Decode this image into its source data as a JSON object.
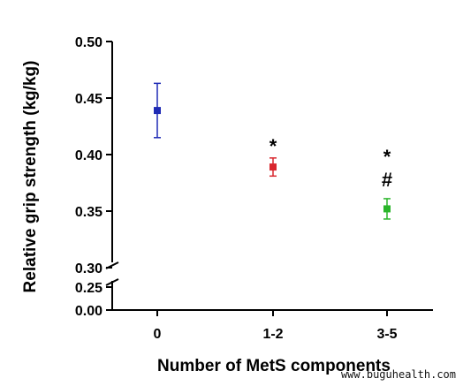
{
  "chart_data": {
    "type": "scatter",
    "categories": [
      "0",
      "1-2",
      "3-5"
    ],
    "series": [
      {
        "values": [
          0.439,
          0.389,
          0.352
        ],
        "error": [
          0.024,
          0.008,
          0.009
        ],
        "colors": [
          "#1f2bb5",
          "#d9262e",
          "#2ab52a"
        ]
      }
    ],
    "annotations": [
      {
        "category": "1-2",
        "text": "*"
      },
      {
        "category": "3-5",
        "text": "*"
      },
      {
        "category": "3-5",
        "text": "#"
      }
    ],
    "xlabel": "Number of MetS components",
    "ylabel": "Relative grip strength (kg/kg)",
    "ylim": [
      0.3,
      0.5
    ],
    "yticks": [
      "0.50",
      "0.45",
      "0.40",
      "0.35",
      "0.30"
    ],
    "ybreak_ticks": [
      "0.25",
      "0.00"
    ],
    "axis_break": true,
    "grid": false
  },
  "watermark": "www.buguhealth.com"
}
